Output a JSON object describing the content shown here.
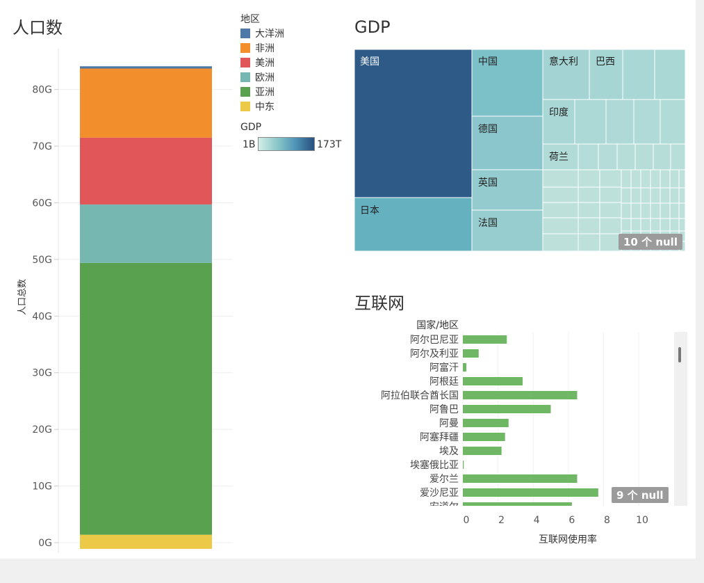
{
  "population": {
    "title": "人口数",
    "ylabel": "人口总数",
    "legend_title": "地区"
  },
  "gdp": {
    "title": "GDP",
    "legend_title": "GDP",
    "scale_min": "1B",
    "scale_max": "173T",
    "null_badge": "10 个 null",
    "labels": {
      "usa": "美国",
      "japan": "日本",
      "china": "中国",
      "germany": "德国",
      "uk": "英国",
      "france": "法国",
      "italy": "意大利",
      "brazil": "巴西",
      "india": "印度",
      "netherlands": "荷兰"
    }
  },
  "internet": {
    "title": "互联网",
    "row_header": "国家/地区",
    "xlabel": "互联网使用率",
    "null_badge": "9 个 null"
  },
  "colors": {
    "oceania": "#4e79a7",
    "africa": "#f28e2b",
    "americas": "#e15759",
    "europe": "#76b7b2",
    "asia": "#59a14f",
    "middle_east": "#edc948",
    "bar": "#6fb765"
  },
  "chart_data": [
    {
      "type": "bar",
      "stacked": true,
      "title": "人口数",
      "ylabel": "人口总数",
      "categories": [
        "人口数"
      ],
      "series": [
        {
          "name": "中东",
          "values": [
            2.5
          ],
          "color": "#edc948"
        },
        {
          "name": "亚洲",
          "values": [
            48.0
          ],
          "color": "#59a14f"
        },
        {
          "name": "欧洲",
          "values": [
            10.3
          ],
          "color": "#76b7b2"
        },
        {
          "name": "美洲",
          "values": [
            11.8
          ],
          "color": "#e15759"
        },
        {
          "name": "非洲",
          "values": [
            12.2
          ],
          "color": "#f28e2b"
        },
        {
          "name": "大洋洲",
          "values": [
            0.4
          ],
          "color": "#4e79a7"
        }
      ],
      "legend_order": [
        "大洋洲",
        "非洲",
        "美洲",
        "欧洲",
        "亚洲",
        "中东"
      ],
      "ylim": [
        -1,
        87
      ],
      "yticks": [
        0,
        10,
        20,
        30,
        40,
        50,
        60,
        70,
        80
      ],
      "ytick_labels": [
        "0G",
        "10G",
        "20G",
        "30G",
        "40G",
        "50G",
        "60G",
        "70G",
        "80G"
      ]
    },
    {
      "type": "bar",
      "orientation": "horizontal",
      "title": "互联网",
      "xlabel": "互联网使用率",
      "categories": [
        "阿尔巴尼亚",
        "阿尔及利亚",
        "阿富汗",
        "阿根廷",
        "阿拉伯联合酋长国",
        "阿鲁巴",
        "阿曼",
        "阿塞拜疆",
        "埃及",
        "埃塞俄比亚",
        "爱尔兰",
        "爱沙尼亚",
        "安道尔"
      ],
      "values": [
        2.5,
        0.9,
        0.2,
        3.4,
        6.5,
        5.0,
        2.6,
        2.4,
        2.2,
        0.05,
        6.5,
        7.7,
        6.2
      ],
      "xlim": [
        0,
        11.5
      ],
      "xticks": [
        0,
        2,
        4,
        6,
        8,
        10
      ]
    }
  ]
}
